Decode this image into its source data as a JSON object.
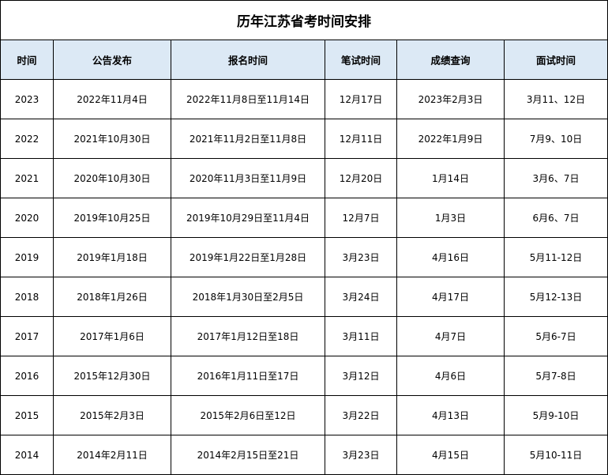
{
  "title": "历年江苏省考时间安排",
  "header_bg": "#dce9f5",
  "columns": [
    "时间",
    "公告发布",
    "报名时间",
    "笔试时间",
    "成绩查询",
    "面试时间"
  ],
  "rows": [
    [
      "2023",
      "2022年11月4日",
      "2022年11月8日至11月14日",
      "12月17日",
      "2023年2月3日",
      "3月11、12日"
    ],
    [
      "2022",
      "2021年10月30日",
      "2021年11月2日至11月8日",
      "12月11日",
      "2022年1月9日",
      "7月9、10日"
    ],
    [
      "2021",
      "2020年10月30日",
      "2020年11月3日至11月9日",
      "12月20日",
      "1月14日",
      "3月6、7日"
    ],
    [
      "2020",
      "2019年10月25日",
      "2019年10月29日至11月4日",
      "12月7日",
      "1月3日",
      "6月6、7日"
    ],
    [
      "2019",
      "2019年1月18日",
      "2019年1月22日至1月28日",
      "3月23日",
      "4月16日",
      "5月11-12日"
    ],
    [
      "2018",
      "2018年1月26日",
      "2018年1月30日至2月5日",
      "3月24日",
      "4月17日",
      "5月12-13日"
    ],
    [
      "2017",
      "2017年1月6日",
      "2017年1月12日至18日",
      "3月11日",
      "4月7日",
      "5月6-7日"
    ],
    [
      "2016",
      "2015年12月30日",
      "2016年1月11日至17日",
      "3月12日",
      "4月6日",
      "5月7-8日"
    ],
    [
      "2015",
      "2015年2月3日",
      "2015年2月6日至12日",
      "3月22日",
      "4月13日",
      "5月9-10日"
    ],
    [
      "2014",
      "2014年2月11日",
      "2014年2月15日至21日",
      "3月23日",
      "4月15日",
      "5月10-11日"
    ]
  ]
}
